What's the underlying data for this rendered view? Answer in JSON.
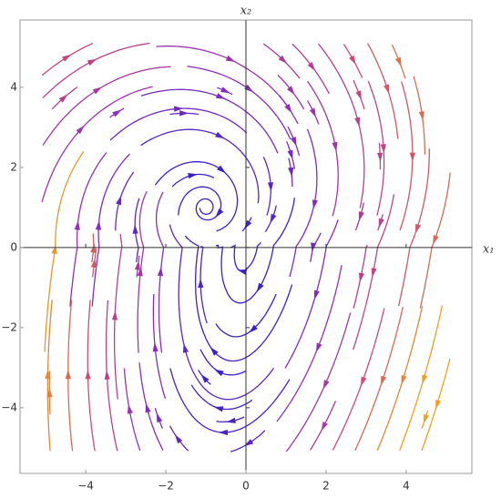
{
  "chart_data": {
    "type": "stream",
    "x_label": "x₁",
    "y_label": "x₂",
    "xlim": [
      -5.64,
      5.64
    ],
    "ylim": [
      -5.64,
      5.68
    ],
    "xticks": [
      {
        "value": -4,
        "label": "−4"
      },
      {
        "value": -2,
        "label": "−2"
      },
      0,
      2,
      4
    ],
    "yticks": [
      {
        "value": -4,
        "label": "−4"
      },
      {
        "value": -2,
        "label": "−2"
      },
      0,
      2,
      4
    ],
    "colors": [
      "#3a20c8",
      "#8a2cc0",
      "#d04a70",
      "#f0a020"
    ]
  }
}
